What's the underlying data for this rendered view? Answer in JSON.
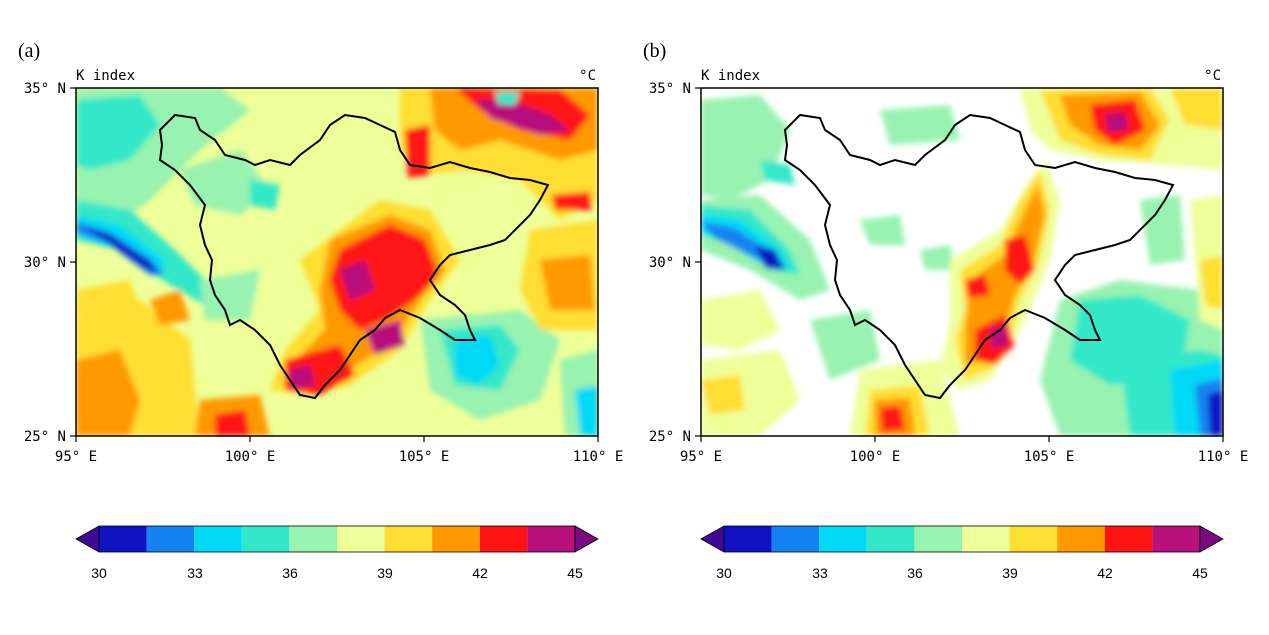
{
  "chart_data": [
    {
      "type": "heatmap",
      "panel_label": "(a)",
      "left_title": "K index",
      "right_title": "°C",
      "x_ticks": [
        "95° E",
        "100° E",
        "105° E",
        "110° E"
      ],
      "y_ticks": [
        "35° N",
        "30° N",
        "25° N"
      ],
      "xlim": [
        95,
        110
      ],
      "ylim": [
        25,
        35
      ],
      "colorbar": {
        "ticks": [
          "30",
          "33",
          "36",
          "39",
          "42",
          "45"
        ],
        "colors": [
          "#3d0a96",
          "#0f14c0",
          "#1482f0",
          "#00d9f5",
          "#33e8c8",
          "#98f2b0",
          "#eeff99",
          "#ffde33",
          "#ff9900",
          "#ff1414",
          "#b8107c",
          "#7a0a82"
        ]
      }
    },
    {
      "type": "heatmap",
      "panel_label": "(b)",
      "left_title": "K index",
      "right_title": "°C",
      "x_ticks": [
        "95° E",
        "100° E",
        "105° E",
        "110° E"
      ],
      "y_ticks": [
        "35° N",
        "30° N",
        "25° N"
      ],
      "xlim": [
        95,
        110
      ],
      "ylim": [
        25,
        35
      ],
      "colorbar": {
        "ticks": [
          "30",
          "33",
          "36",
          "39",
          "42",
          "45"
        ],
        "colors": [
          "#3d0a96",
          "#0f14c0",
          "#1482f0",
          "#00d9f5",
          "#33e8c8",
          "#98f2b0",
          "#eeff99",
          "#ffde33",
          "#ff9900",
          "#ff1414",
          "#b8107c",
          "#7a0a82"
        ]
      }
    }
  ]
}
